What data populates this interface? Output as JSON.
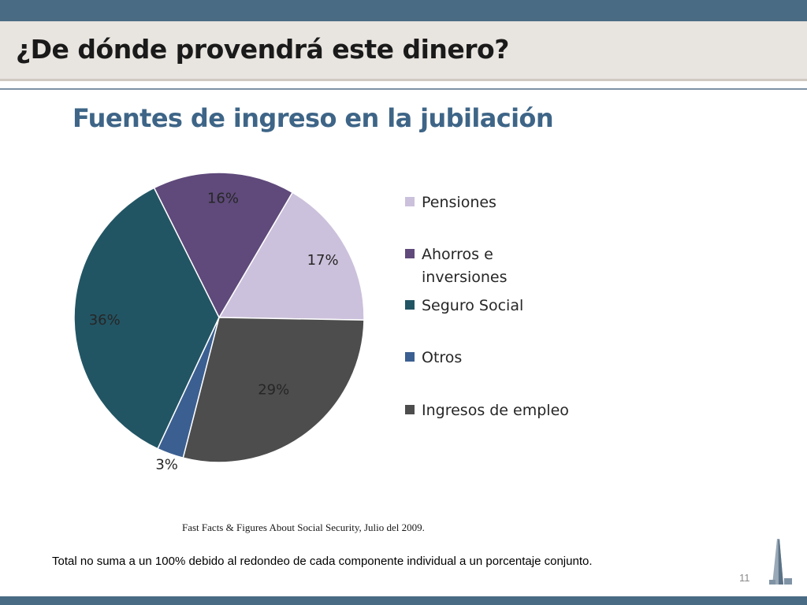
{
  "slide": {
    "title": "¿De dónde provendrá este dinero?",
    "source": "Fast Facts & Figures About Social Security, Julio del  2009.",
    "disclaimer": "Total no suma a un 100% debido al redondeo de cada componente individual a un porcentaje conjunto.",
    "page_number": "11",
    "logo_icon": "pyramid-tower-icon"
  },
  "colors": {
    "header_bar": "#4a6b84",
    "title_band": "#e8e4df",
    "chart_title": "#3e6587"
  },
  "chart_data": {
    "type": "pie",
    "title": "Fuentes de ingreso en la jubilación",
    "series": [
      {
        "name": "Pensiones",
        "label": "17%",
        "value": 17,
        "color": "#ccc1dc"
      },
      {
        "name": "Ahorros e inversiones",
        "label": "16%",
        "value": 16,
        "color": "#5f4a7b"
      },
      {
        "name": "Seguro Social",
        "label": "36%",
        "value": 36,
        "color": "#225564"
      },
      {
        "name": "Otros",
        "label": "3%",
        "value": 3,
        "color": "#3b5f91"
      },
      {
        "name": "Ingresos de empleo",
        "label": "29%",
        "value": 29,
        "color": "#4d4d4d"
      }
    ],
    "start_angle_deg": 91,
    "direction": "clockwise",
    "legend_position": "right"
  }
}
